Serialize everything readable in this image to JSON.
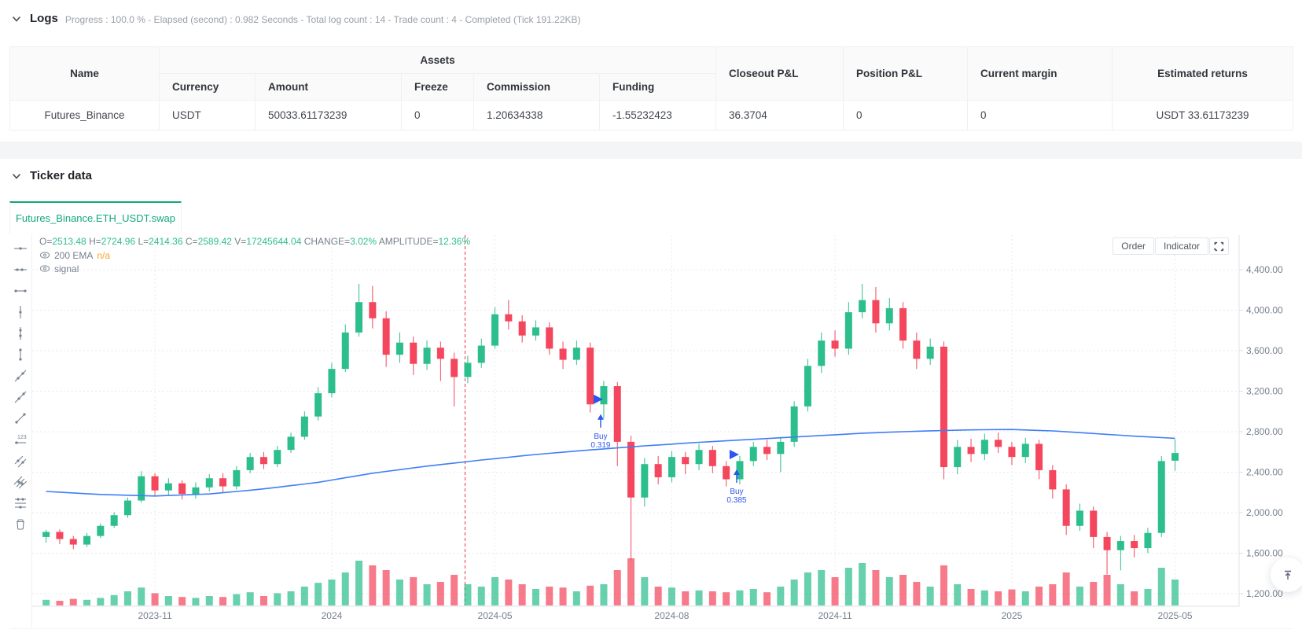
{
  "logs": {
    "title": "Logs",
    "summary": "Progress : 100.0 % - Elapsed (second) : 0.982  Seconds - Total log count : 14 - Trade count : 4 - Completed (Tick 191.22KB)"
  },
  "assets_table": {
    "group_header": "Assets",
    "columns": [
      "Name",
      "Currency",
      "Amount",
      "Freeze",
      "Commission",
      "Funding",
      "Closeout P&L",
      "Position P&L",
      "Current margin",
      "Estimated returns"
    ],
    "rows": [
      [
        "Futures_Binance",
        "USDT",
        "50033.61173239",
        "0",
        "1.20634338",
        "-1.55232423",
        "36.3704",
        "0",
        "0",
        "USDT 33.61173239"
      ]
    ]
  },
  "ticker": {
    "title": "Ticker data",
    "tab": "Futures_Binance.ETH_USDT.swap"
  },
  "chart_buttons": {
    "order": "Order",
    "indicator": "Indicator"
  },
  "chart_data": {
    "type": "candlestick",
    "symbol": "Futures_Binance.ETH_USDT.swap",
    "ohlc_legend": [
      [
        "O=",
        "2513.48"
      ],
      [
        "H=",
        "2724.96"
      ],
      [
        "L=",
        "2414.36"
      ],
      [
        "C=",
        "2589.42"
      ],
      [
        "V=",
        "17245644.04"
      ],
      [
        "CHANGE=",
        "3.02%"
      ],
      [
        "AMPLITUDE=",
        "12.36%"
      ]
    ],
    "indicators": [
      {
        "name": "200 EMA",
        "value": "n/a"
      },
      {
        "name": "signal",
        "value": ""
      }
    ],
    "y_axis": {
      "min": 1200,
      "max": 4400,
      "ticks": [
        {
          "price": 4400,
          "label": "4,400.00"
        },
        {
          "price": 4000,
          "label": "4,000.00"
        },
        {
          "price": 3600,
          "label": "3,600.00"
        },
        {
          "price": 3200,
          "label": "3,200.00"
        },
        {
          "price": 2800,
          "label": "2,800.00"
        },
        {
          "price": 2400,
          "label": "2,400.00"
        },
        {
          "price": 2000,
          "label": "2,000.00"
        },
        {
          "price": 1600,
          "label": "1,600.00"
        },
        {
          "price": 1200,
          "label": "1,200.00"
        }
      ]
    },
    "x_ticks": [
      {
        "label": "2023-11",
        "index": 8
      },
      {
        "label": "2024",
        "index": 21
      },
      {
        "label": "2024-05",
        "index": 33
      },
      {
        "label": "2024-08",
        "index": 46
      },
      {
        "label": "2024-11",
        "index": 58
      },
      {
        "label": "2025",
        "index": 71
      },
      {
        "label": "2025-05",
        "index": 83
      }
    ],
    "marker_line_index": 30.8,
    "candles": [
      [
        1760,
        1830,
        1705,
        1810,
        0.12
      ],
      [
        1810,
        1835,
        1690,
        1740,
        0.1
      ],
      [
        1740,
        1770,
        1640,
        1685,
        0.14
      ],
      [
        1685,
        1800,
        1660,
        1770,
        0.12
      ],
      [
        1770,
        1895,
        1750,
        1870,
        0.16
      ],
      [
        1870,
        2005,
        1850,
        1975,
        0.22
      ],
      [
        1975,
        2150,
        1950,
        2120,
        0.3
      ],
      [
        2120,
        2410,
        2100,
        2360,
        0.38
      ],
      [
        2360,
        2390,
        2160,
        2220,
        0.26
      ],
      [
        2220,
        2340,
        2170,
        2290,
        0.2
      ],
      [
        2290,
        2320,
        2130,
        2185,
        0.18
      ],
      [
        2185,
        2300,
        2140,
        2250,
        0.16
      ],
      [
        2250,
        2380,
        2210,
        2340,
        0.2
      ],
      [
        2340,
        2390,
        2200,
        2260,
        0.18
      ],
      [
        2260,
        2460,
        2230,
        2420,
        0.24
      ],
      [
        2420,
        2590,
        2390,
        2550,
        0.28
      ],
      [
        2550,
        2600,
        2430,
        2480,
        0.2
      ],
      [
        2480,
        2660,
        2450,
        2620,
        0.26
      ],
      [
        2620,
        2790,
        2590,
        2750,
        0.3
      ],
      [
        2750,
        3000,
        2720,
        2950,
        0.4
      ],
      [
        2950,
        3240,
        2910,
        3180,
        0.48
      ],
      [
        3180,
        3480,
        3140,
        3420,
        0.55
      ],
      [
        3420,
        3860,
        3390,
        3780,
        0.7
      ],
      [
        3780,
        4260,
        3740,
        4080,
        0.95
      ],
      [
        4080,
        4240,
        3820,
        3920,
        0.85
      ],
      [
        3920,
        3990,
        3440,
        3560,
        0.75
      ],
      [
        3560,
        3780,
        3480,
        3680,
        0.55
      ],
      [
        3680,
        3740,
        3360,
        3470,
        0.6
      ],
      [
        3470,
        3700,
        3410,
        3630,
        0.45
      ],
      [
        3630,
        3690,
        3300,
        3520,
        0.5
      ],
      [
        3520,
        3580,
        3050,
        3340,
        0.65
      ],
      [
        3340,
        3550,
        3280,
        3480,
        0.45
      ],
      [
        3480,
        3720,
        3430,
        3650,
        0.4
      ],
      [
        3650,
        4030,
        3620,
        3960,
        0.6
      ],
      [
        3960,
        4100,
        3810,
        3890,
        0.55
      ],
      [
        3890,
        3950,
        3680,
        3750,
        0.45
      ],
      [
        3750,
        3900,
        3700,
        3830,
        0.35
      ],
      [
        3830,
        3880,
        3560,
        3620,
        0.4
      ],
      [
        3620,
        3690,
        3420,
        3510,
        0.38
      ],
      [
        3510,
        3700,
        3460,
        3630,
        0.3
      ],
      [
        3630,
        3680,
        2990,
        3070,
        0.42
      ],
      [
        3070,
        3300,
        2930,
        3250,
        0.45
      ],
      [
        3250,
        3290,
        2460,
        2700,
        0.75
      ],
      [
        2700,
        2760,
        1528,
        2150,
        1.0
      ],
      [
        2150,
        2540,
        2060,
        2480,
        0.6
      ],
      [
        2480,
        2560,
        2280,
        2350,
        0.4
      ],
      [
        2350,
        2610,
        2300,
        2550,
        0.38
      ],
      [
        2550,
        2600,
        2380,
        2480,
        0.3
      ],
      [
        2480,
        2680,
        2420,
        2620,
        0.32
      ],
      [
        2620,
        2660,
        2390,
        2460,
        0.3
      ],
      [
        2460,
        2510,
        2260,
        2330,
        0.28
      ],
      [
        2330,
        2560,
        2280,
        2510,
        0.32
      ],
      [
        2510,
        2700,
        2460,
        2650,
        0.35
      ],
      [
        2650,
        2720,
        2520,
        2580,
        0.28
      ],
      [
        2580,
        2750,
        2400,
        2700,
        0.4
      ],
      [
        2700,
        3100,
        2650,
        3050,
        0.55
      ],
      [
        3050,
        3520,
        3000,
        3450,
        0.7
      ],
      [
        3450,
        3780,
        3380,
        3700,
        0.75
      ],
      [
        3700,
        3800,
        3540,
        3620,
        0.6
      ],
      [
        3620,
        4080,
        3560,
        3980,
        0.8
      ],
      [
        3980,
        4260,
        3920,
        4100,
        0.9
      ],
      [
        4100,
        4230,
        3780,
        3870,
        0.75
      ],
      [
        3870,
        4120,
        3800,
        4020,
        0.6
      ],
      [
        4020,
        4080,
        3620,
        3700,
        0.65
      ],
      [
        3700,
        3780,
        3420,
        3520,
        0.5
      ],
      [
        3520,
        3720,
        3460,
        3640,
        0.4
      ],
      [
        3640,
        3690,
        2330,
        2450,
        0.85
      ],
      [
        2450,
        2720,
        2380,
        2650,
        0.45
      ],
      [
        2650,
        2730,
        2500,
        2580,
        0.35
      ],
      [
        2580,
        2780,
        2520,
        2720,
        0.32
      ],
      [
        2720,
        2790,
        2590,
        2650,
        0.3
      ],
      [
        2650,
        2700,
        2470,
        2550,
        0.34
      ],
      [
        2550,
        2740,
        2490,
        2680,
        0.3
      ],
      [
        2680,
        2720,
        2330,
        2420,
        0.4
      ],
      [
        2420,
        2470,
        2140,
        2230,
        0.45
      ],
      [
        2230,
        2280,
        1780,
        1870,
        0.7
      ],
      [
        1870,
        2090,
        1820,
        2020,
        0.4
      ],
      [
        2020,
        2060,
        1650,
        1760,
        0.5
      ],
      [
        1760,
        1810,
        1390,
        1630,
        0.65
      ],
      [
        1630,
        1770,
        1430,
        1720,
        0.45
      ],
      [
        1720,
        1780,
        1560,
        1650,
        0.3
      ],
      [
        1650,
        1850,
        1600,
        1800,
        0.35
      ],
      [
        1800,
        2560,
        1760,
        2510,
        0.8
      ],
      [
        2513.48,
        2724.96,
        2414.36,
        2589.42,
        0.55
      ]
    ],
    "ema": {
      "name": "200 EMA",
      "points": [
        [
          0,
          2210
        ],
        [
          4,
          2180
        ],
        [
          8,
          2165
        ],
        [
          12,
          2185
        ],
        [
          16,
          2235
        ],
        [
          20,
          2300
        ],
        [
          24,
          2390
        ],
        [
          28,
          2460
        ],
        [
          32,
          2520
        ],
        [
          36,
          2575
        ],
        [
          40,
          2620
        ],
        [
          44,
          2660
        ],
        [
          48,
          2695
        ],
        [
          52,
          2725
        ],
        [
          56,
          2755
        ],
        [
          60,
          2785
        ],
        [
          64,
          2805
        ],
        [
          68,
          2818
        ],
        [
          71,
          2822
        ],
        [
          74,
          2808
        ],
        [
          77,
          2782
        ],
        [
          80,
          2756
        ],
        [
          83,
          2735
        ]
      ]
    },
    "signals": [
      {
        "index": 41,
        "label": "Buy",
        "qty": "0.319",
        "marker_price": 3120
      },
      {
        "index": 51,
        "label": "Buy",
        "qty": "0.385",
        "marker_price": 2575
      }
    ],
    "toolbar_tools": [
      "horizontal-line",
      "horizontal-ray",
      "horizontal-segment",
      "vertical-line",
      "vertical-ray",
      "vertical-segment",
      "trend-line",
      "ray-line",
      "segment",
      "price-line",
      "parallel-line",
      "price-channel",
      "fibonacci-line",
      "delete"
    ],
    "colors": {
      "up": "#2dbe8d",
      "down": "#f4465d",
      "ema": "#3f7ef7",
      "signal": "#2d55ef",
      "marker_line": "#f23645",
      "grid": "#e8eaee",
      "axis_line": "#dfe2e7",
      "axis_text": "#76808f",
      "tab_active": "#12a77c",
      "na": "#f7a52a"
    }
  }
}
